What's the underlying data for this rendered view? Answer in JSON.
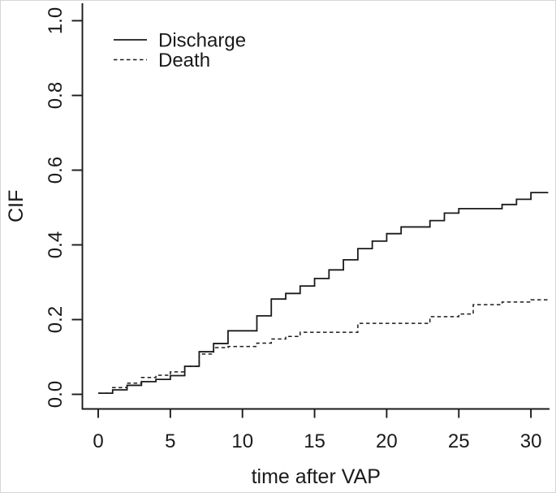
{
  "figure": {
    "background": "#ffffff",
    "ink_color": "#1b1b1b",
    "border_color": "#d6d6d6"
  },
  "chart_data": {
    "type": "line",
    "line_mode": "step-post",
    "title": "",
    "xlabel": "time after VAP",
    "ylabel": "CIF",
    "xlim": [
      0,
      31.2
    ],
    "ylim": [
      0.0,
      1.0
    ],
    "grid": false,
    "x_ticks": [
      0,
      5,
      10,
      15,
      20,
      25,
      30
    ],
    "x_tick_labels": [
      "0",
      "5",
      "10",
      "15",
      "20",
      "25",
      "30"
    ],
    "y_ticks": [
      0.0,
      0.2,
      0.4,
      0.6,
      0.8,
      1.0
    ],
    "y_tick_labels": [
      "0.0",
      "0.2",
      "0.4",
      "0.6",
      "0.8",
      "1.0"
    ],
    "x_max_extent": 31.2,
    "legend": {
      "position": "top-left",
      "entries": [
        {
          "label": "Discharge",
          "line_style": "solid"
        },
        {
          "label": "Death",
          "line_style": "dashed"
        }
      ]
    },
    "series": [
      {
        "name": "Discharge",
        "line_style": "solid",
        "points": [
          [
            0,
            0.003
          ],
          [
            1,
            0.012
          ],
          [
            2,
            0.024
          ],
          [
            3,
            0.034
          ],
          [
            4,
            0.04
          ],
          [
            5,
            0.05
          ],
          [
            6,
            0.075
          ],
          [
            7,
            0.114
          ],
          [
            8,
            0.136
          ],
          [
            9,
            0.17
          ],
          [
            11,
            0.21
          ],
          [
            12,
            0.255
          ],
          [
            13,
            0.27
          ],
          [
            14,
            0.29
          ],
          [
            15,
            0.31
          ],
          [
            16,
            0.333
          ],
          [
            17,
            0.36
          ],
          [
            18,
            0.39
          ],
          [
            19,
            0.41
          ],
          [
            20,
            0.43
          ],
          [
            21,
            0.448
          ],
          [
            23,
            0.465
          ],
          [
            24,
            0.485
          ],
          [
            25,
            0.497
          ],
          [
            28,
            0.508
          ],
          [
            29,
            0.522
          ],
          [
            30,
            0.54
          ]
        ]
      },
      {
        "name": "Death",
        "line_style": "dashed",
        "points": [
          [
            0,
            0.003
          ],
          [
            1,
            0.018
          ],
          [
            2,
            0.03
          ],
          [
            3,
            0.045
          ],
          [
            4,
            0.051
          ],
          [
            5,
            0.06
          ],
          [
            6,
            0.075
          ],
          [
            7,
            0.108
          ],
          [
            8,
            0.125
          ],
          [
            9,
            0.128
          ],
          [
            11,
            0.137
          ],
          [
            12,
            0.148
          ],
          [
            13,
            0.155
          ],
          [
            14,
            0.166
          ],
          [
            18,
            0.19
          ],
          [
            23,
            0.208
          ],
          [
            25,
            0.215
          ],
          [
            26,
            0.24
          ],
          [
            28,
            0.247
          ],
          [
            30,
            0.253
          ]
        ]
      }
    ]
  }
}
